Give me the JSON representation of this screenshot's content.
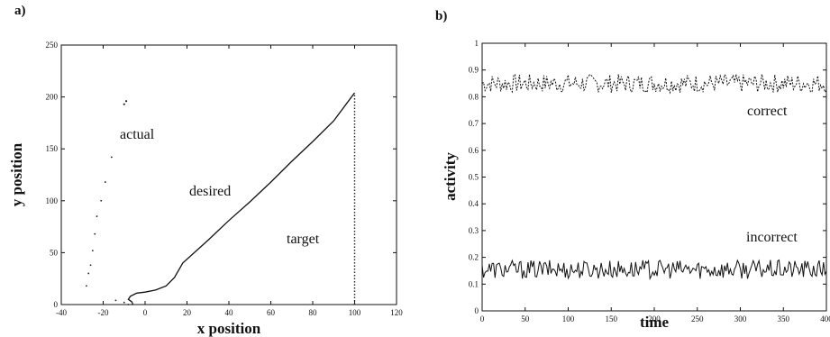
{
  "panel_labels": [
    "a)",
    "b)"
  ],
  "chart_data": [
    {
      "type": "line",
      "panel": "a)",
      "xlabel": "x position",
      "ylabel": "y position",
      "xlim": [
        -40,
        120
      ],
      "ylim": [
        0,
        250
      ],
      "xticks": [
        "-40",
        "-20",
        "0",
        "20",
        "40",
        "60",
        "80",
        "100",
        "120"
      ],
      "yticks": [
        "0",
        "50",
        "100",
        "150",
        "200",
        "250"
      ],
      "annotations": {
        "actual": "actual",
        "desired": "desired",
        "target": "target"
      },
      "series": [
        {
          "name": "desired",
          "style": "solid",
          "x": [
            -6,
            -8,
            -7,
            -4,
            0,
            5,
            10,
            14,
            18,
            30,
            40,
            50,
            60,
            70,
            80,
            90,
            100
          ],
          "y": [
            2,
            5,
            8,
            11,
            12,
            14,
            18,
            26,
            40,
            62,
            81,
            99,
            118,
            138,
            157,
            177,
            204
          ]
        },
        {
          "name": "actual",
          "style": "dotted",
          "x": [
            -28,
            -27,
            -26,
            -25,
            -24,
            -23,
            -21,
            -14,
            -10,
            -8,
            -6,
            -19,
            -16
          ],
          "y": [
            18,
            30,
            38,
            52,
            68,
            85,
            100,
            4,
            2,
            0,
            1,
            118,
            142
          ]
        },
        {
          "name": "target",
          "style": "dotted",
          "x": [
            100,
            100
          ],
          "y": [
            0,
            204
          ]
        }
      ],
      "scatter_points": [
        {
          "x": -10,
          "y": 193
        },
        {
          "x": -9,
          "y": 196
        }
      ]
    },
    {
      "type": "line",
      "panel": "b)",
      "xlabel": "time",
      "ylabel": "activity",
      "xlim": [
        0,
        400
      ],
      "ylim": [
        0,
        1
      ],
      "xticks": [
        "0",
        "50",
        "100",
        "150",
        "200",
        "250",
        "300",
        "350",
        "400"
      ],
      "yticks": [
        "0",
        "0.1",
        "0.2",
        "0.3",
        "0.4",
        "0.5",
        "0.6",
        "0.7",
        "0.8",
        "0.9",
        "1"
      ],
      "annotations": {
        "correct": "correct",
        "incorrect": "incorrect"
      },
      "series": [
        {
          "name": "correct",
          "style": "dashed",
          "mean": 0.85,
          "noise": 0.035,
          "x_start": 0,
          "x_end": 400,
          "samples": 240
        },
        {
          "name": "incorrect",
          "style": "solid",
          "mean": 0.155,
          "noise": 0.035,
          "x_start": 0,
          "x_end": 400,
          "samples": 240
        }
      ]
    }
  ]
}
